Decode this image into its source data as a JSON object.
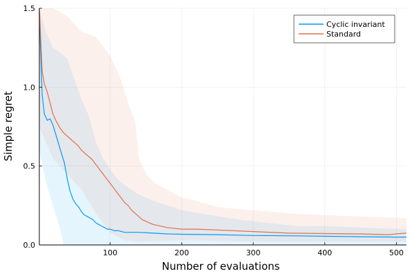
{
  "chart_data": {
    "type": "line",
    "title": "",
    "xlabel": "Number of evaluations",
    "ylabel": "Simple regret",
    "xlim": [
      1,
      514
    ],
    "ylim": [
      0,
      1.5
    ],
    "x_ticks": [
      100,
      200,
      300,
      400,
      500
    ],
    "y_ticks": [
      0,
      0.5,
      1.0,
      1.5
    ],
    "y_tick_labels": [
      "0.0",
      "0.5",
      "1.0",
      "1.5"
    ],
    "grid": true,
    "legend_position": "top-right",
    "series": [
      {
        "name": "Cyclic invariant",
        "color": "#009af9",
        "band_color": "#009af9",
        "mean": [
          [
            1,
            1.47
          ],
          [
            3,
            1.2
          ],
          [
            5,
            0.95
          ],
          [
            8,
            0.83
          ],
          [
            12,
            0.79
          ],
          [
            16,
            0.8
          ],
          [
            20,
            0.76
          ],
          [
            24,
            0.7
          ],
          [
            28,
            0.64
          ],
          [
            32,
            0.58
          ],
          [
            36,
            0.52
          ],
          [
            40,
            0.42
          ],
          [
            44,
            0.34
          ],
          [
            48,
            0.29
          ],
          [
            52,
            0.26
          ],
          [
            56,
            0.24
          ],
          [
            60,
            0.21
          ],
          [
            64,
            0.19
          ],
          [
            68,
            0.18
          ],
          [
            72,
            0.17
          ],
          [
            76,
            0.16
          ],
          [
            80,
            0.14
          ],
          [
            84,
            0.13
          ],
          [
            88,
            0.12
          ],
          [
            92,
            0.11
          ],
          [
            96,
            0.1
          ],
          [
            100,
            0.1
          ],
          [
            106,
            0.09
          ],
          [
            112,
            0.09
          ],
          [
            120,
            0.08
          ],
          [
            140,
            0.08
          ],
          [
            160,
            0.075
          ],
          [
            180,
            0.07
          ],
          [
            200,
            0.068
          ],
          [
            250,
            0.065
          ],
          [
            300,
            0.06
          ],
          [
            350,
            0.058
          ],
          [
            400,
            0.055
          ],
          [
            450,
            0.052
          ],
          [
            500,
            0.05
          ],
          [
            514,
            0.05
          ]
        ],
        "upper": [
          [
            1,
            1.5
          ],
          [
            10,
            1.35
          ],
          [
            20,
            1.25
          ],
          [
            30,
            1.22
          ],
          [
            40,
            1.18
          ],
          [
            50,
            1.05
          ],
          [
            60,
            0.92
          ],
          [
            70,
            0.82
          ],
          [
            80,
            0.65
          ],
          [
            90,
            0.55
          ],
          [
            100,
            0.48
          ],
          [
            110,
            0.42
          ],
          [
            120,
            0.38
          ],
          [
            140,
            0.32
          ],
          [
            160,
            0.28
          ],
          [
            180,
            0.25
          ],
          [
            200,
            0.22
          ],
          [
            240,
            0.19
          ],
          [
            280,
            0.16
          ],
          [
            320,
            0.14
          ],
          [
            360,
            0.12
          ],
          [
            400,
            0.12
          ],
          [
            450,
            0.11
          ],
          [
            514,
            0.1
          ]
        ],
        "lower": [
          [
            1,
            0.6
          ],
          [
            10,
            0.4
          ],
          [
            20,
            0.25
          ],
          [
            30,
            0.1
          ],
          [
            35,
            0
          ],
          [
            514,
            0
          ]
        ]
      },
      {
        "name": "Standard",
        "color": "#e26f46",
        "band_color": "#e26f46",
        "mean": [
          [
            1,
            1.5
          ],
          [
            3,
            1.3
          ],
          [
            5,
            1.1
          ],
          [
            8,
            1.02
          ],
          [
            12,
            0.97
          ],
          [
            16,
            0.9
          ],
          [
            20,
            0.83
          ],
          [
            25,
            0.78
          ],
          [
            30,
            0.74
          ],
          [
            35,
            0.71
          ],
          [
            40,
            0.69
          ],
          [
            45,
            0.67
          ],
          [
            50,
            0.65
          ],
          [
            55,
            0.63
          ],
          [
            60,
            0.6
          ],
          [
            65,
            0.58
          ],
          [
            70,
            0.56
          ],
          [
            75,
            0.54
          ],
          [
            80,
            0.51
          ],
          [
            85,
            0.48
          ],
          [
            90,
            0.45
          ],
          [
            95,
            0.42
          ],
          [
            100,
            0.39
          ],
          [
            105,
            0.36
          ],
          [
            110,
            0.33
          ],
          [
            115,
            0.3
          ],
          [
            120,
            0.27
          ],
          [
            125,
            0.25
          ],
          [
            130,
            0.22
          ],
          [
            135,
            0.2
          ],
          [
            140,
            0.18
          ],
          [
            145,
            0.16
          ],
          [
            150,
            0.15
          ],
          [
            160,
            0.13
          ],
          [
            170,
            0.12
          ],
          [
            180,
            0.11
          ],
          [
            200,
            0.1
          ],
          [
            220,
            0.1
          ],
          [
            250,
            0.095
          ],
          [
            300,
            0.085
          ],
          [
            350,
            0.075
          ],
          [
            400,
            0.072
          ],
          [
            450,
            0.07
          ],
          [
            490,
            0.065
          ],
          [
            500,
            0.07
          ],
          [
            514,
            0.075
          ]
        ],
        "upper": [
          [
            1,
            1.5
          ],
          [
            20,
            1.5
          ],
          [
            40,
            1.45
          ],
          [
            60,
            1.35
          ],
          [
            80,
            1.32
          ],
          [
            100,
            1.2
          ],
          [
            115,
            1.05
          ],
          [
            125,
            0.9
          ],
          [
            135,
            0.78
          ],
          [
            140,
            0.55
          ],
          [
            150,
            0.45
          ],
          [
            160,
            0.4
          ],
          [
            180,
            0.35
          ],
          [
            200,
            0.3
          ],
          [
            220,
            0.28
          ],
          [
            250,
            0.24
          ],
          [
            300,
            0.22
          ],
          [
            350,
            0.2
          ],
          [
            400,
            0.19
          ],
          [
            450,
            0.18
          ],
          [
            514,
            0.17
          ]
        ],
        "lower": [
          [
            1,
            0.75
          ],
          [
            20,
            0.55
          ],
          [
            40,
            0.45
          ],
          [
            60,
            0.35
          ],
          [
            80,
            0.2
          ],
          [
            100,
            0.08
          ],
          [
            120,
            0.03
          ],
          [
            140,
            0.02
          ],
          [
            200,
            0.03
          ],
          [
            300,
            0.02
          ],
          [
            400,
            0.02
          ],
          [
            514,
            0.02
          ]
        ]
      }
    ]
  }
}
